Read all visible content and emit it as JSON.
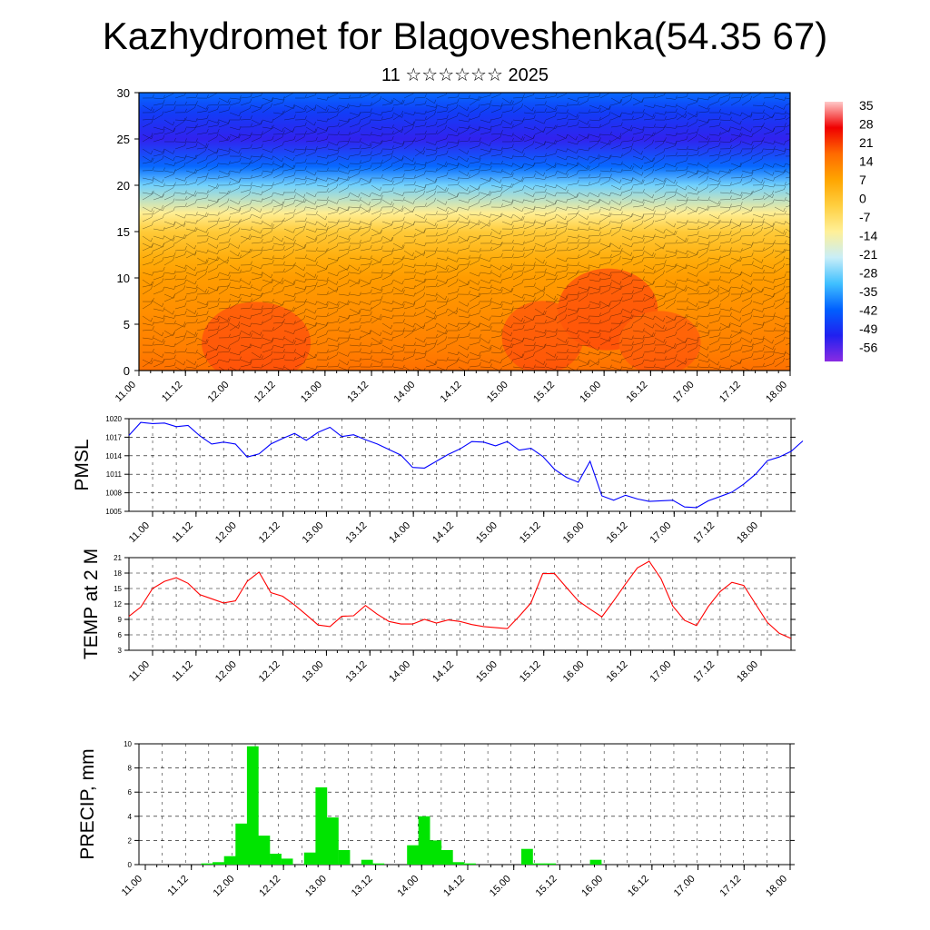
{
  "header": {
    "title": "Kazhydromet for Blagoveshenka(54.35 67)",
    "subtitle": "11 ☆☆☆☆☆☆ 2025"
  },
  "colors": {
    "pressure_line": "#0000ff",
    "temperature_line": "#ff0000",
    "precip_bar": "#00e400",
    "colormap": [
      "#ffc8c8",
      "#f00000",
      "#ff6a00",
      "#ffa500",
      "#ffcf40",
      "#fff098",
      "#c8eef8",
      "#40c0ff",
      "#0060ff",
      "#2020f0",
      "#8a2be2"
    ]
  },
  "time_ticks": [
    "11.00",
    "11.12",
    "12.00",
    "12.12",
    "13.00",
    "13.12",
    "14.00",
    "14.12",
    "15.00",
    "15.12",
    "16.00",
    "16.12",
    "17.00",
    "17.12",
    "18.00"
  ],
  "chart_data": [
    {
      "type": "heatmap",
      "title": "",
      "xlabel": "",
      "ylabel": "",
      "ylim": [
        0,
        30
      ],
      "y_ticks": [
        0,
        5,
        10,
        15,
        20,
        25,
        30
      ],
      "x_ticks": [
        "11.00",
        "11.12",
        "12.00",
        "12.12",
        "13.00",
        "13.12",
        "14.00",
        "14.12",
        "15.00",
        "15.12",
        "16.00",
        "16.12",
        "17.00",
        "17.12",
        "18.00"
      ],
      "colorbar_labels": [
        "35",
        "28",
        "21",
        "14",
        "7",
        "0",
        "-7",
        "-14",
        "-21",
        "-28",
        "-35",
        "-42",
        "-49",
        "-56"
      ],
      "levels": [
        0,
        2,
        5,
        8,
        10,
        12,
        15,
        17,
        20,
        22,
        25,
        28,
        30
      ],
      "level_values": [
        15,
        13,
        11,
        9,
        8,
        5,
        -2,
        -12,
        -28,
        -40,
        -52,
        -46,
        -40
      ]
    },
    {
      "type": "line",
      "title": "",
      "ylabel": "PMSL",
      "ylim": [
        1005,
        1020
      ],
      "y_ticks": [
        1005,
        1008,
        1011,
        1014,
        1017,
        1020
      ],
      "x_ticks": [
        "11.00",
        "11.12",
        "12.00",
        "12.12",
        "13.00",
        "13.12",
        "14.00",
        "14.12",
        "15.00",
        "15.12",
        "16.00",
        "16.12",
        "17.00",
        "17.12",
        "18.00"
      ],
      "x_step_hours": 3,
      "values": [
        1017.3,
        1019.4,
        1019.2,
        1019.3,
        1018.7,
        1018.9,
        1017.2,
        1015.9,
        1016.2,
        1015.9,
        1013.8,
        1014.3,
        1015.9,
        1016.8,
        1017.6,
        1016.5,
        1017.8,
        1018.6,
        1017.1,
        1017.4,
        1016.6,
        1015.9,
        1015.0,
        1014.1,
        1012.1,
        1012.0,
        1013.1,
        1014.2,
        1015.1,
        1016.3,
        1016.2,
        1015.6,
        1016.3,
        1014.9,
        1015.2,
        1013.9,
        1011.8,
        1010.5,
        1009.7,
        1013.1,
        1007.5,
        1006.8,
        1007.6,
        1007.0,
        1006.6,
        1006.7,
        1006.8,
        1005.7,
        1005.6,
        1006.7,
        1007.4,
        1008.1,
        1009.4,
        1011.0,
        1013.2,
        1013.8,
        1014.7,
        1016.4
      ]
    },
    {
      "type": "line",
      "title": "",
      "ylabel": "TEMP at 2 M",
      "ylim": [
        3,
        21
      ],
      "y_ticks": [
        3,
        6,
        9,
        12,
        15,
        18,
        21
      ],
      "x_ticks": [
        "11.00",
        "11.12",
        "12.00",
        "12.12",
        "13.00",
        "13.12",
        "14.00",
        "14.12",
        "15.00",
        "15.12",
        "16.00",
        "16.12",
        "17.00",
        "17.12",
        "18.00"
      ],
      "x_step_hours": 3,
      "values": [
        9.6,
        11.4,
        15.0,
        16.4,
        17.1,
        16.0,
        13.8,
        13.0,
        12.2,
        12.6,
        16.4,
        18.2,
        14.2,
        13.5,
        11.8,
        9.9,
        7.9,
        7.6,
        9.6,
        9.7,
        11.7,
        10.0,
        8.6,
        8.1,
        8.1,
        9.0,
        8.3,
        8.9,
        8.6,
        8.0,
        7.6,
        7.4,
        7.2,
        9.6,
        12.2,
        17.9,
        17.9,
        15.2,
        12.6,
        11.0,
        9.5,
        12.6,
        15.9,
        19.0,
        20.3,
        16.9,
        11.6,
        8.8,
        7.8,
        11.5,
        14.4,
        16.2,
        15.6,
        12.0,
        8.4,
        6.3,
        5.3
      ]
    },
    {
      "type": "bar",
      "title": "",
      "ylabel": "PRECIP, mm",
      "ylim": [
        0,
        10
      ],
      "y_ticks": [
        0,
        2,
        4,
        6,
        8,
        10
      ],
      "x_ticks": [
        "11.00",
        "11.12",
        "12.00",
        "12.12",
        "13.00",
        "13.12",
        "14.00",
        "14.12",
        "15.00",
        "15.12",
        "16.00",
        "16.12",
        "17.00",
        "17.12",
        "18.00"
      ],
      "x_step_hours": 3,
      "values": [
        0,
        0,
        0,
        0,
        0,
        0.1,
        0.2,
        0.7,
        3.4,
        9.8,
        2.4,
        0.9,
        0.5,
        0,
        1.0,
        6.4,
        3.9,
        1.2,
        0,
        0.4,
        0.1,
        0,
        0,
        1.6,
        4.0,
        2.0,
        1.2,
        0.2,
        0.1,
        0,
        0,
        0,
        0,
        1.3,
        0.1,
        0.1,
        0,
        0,
        0,
        0.4,
        0,
        0,
        0,
        0,
        0,
        0,
        0,
        0,
        0,
        0,
        0,
        0,
        0,
        0,
        0,
        0,
        0
      ]
    }
  ]
}
